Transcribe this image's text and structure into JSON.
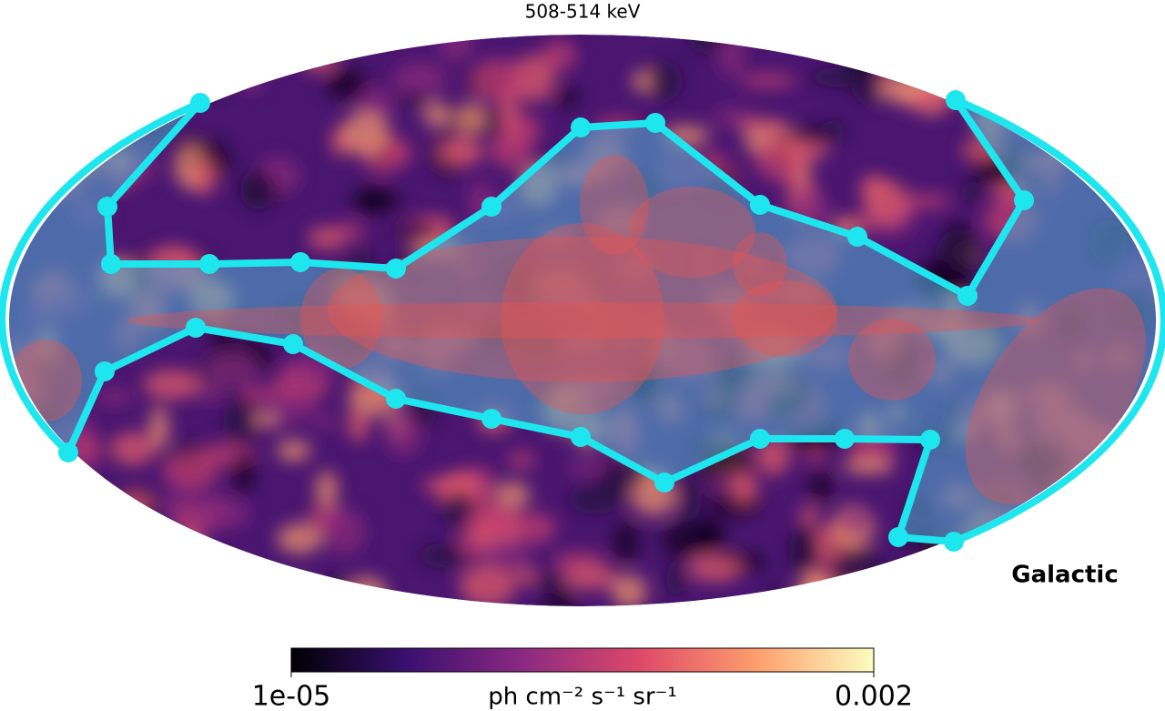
{
  "title": "508-514 keV",
  "frame_label": "Galactic",
  "colorbar": {
    "log": true,
    "lim": [
      1e-05,
      0.002
    ],
    "ticks": [
      {
        "value": 1e-05,
        "label": "1e-05"
      },
      0.002
    ],
    "label": "ph cm⁻² s⁻¹ sr⁻¹",
    "colors": [
      "#000004",
      "#3b0f70",
      "#8c2981",
      "#de4968",
      "#fe9f6d",
      "#fcfdbf"
    ]
  }
}
